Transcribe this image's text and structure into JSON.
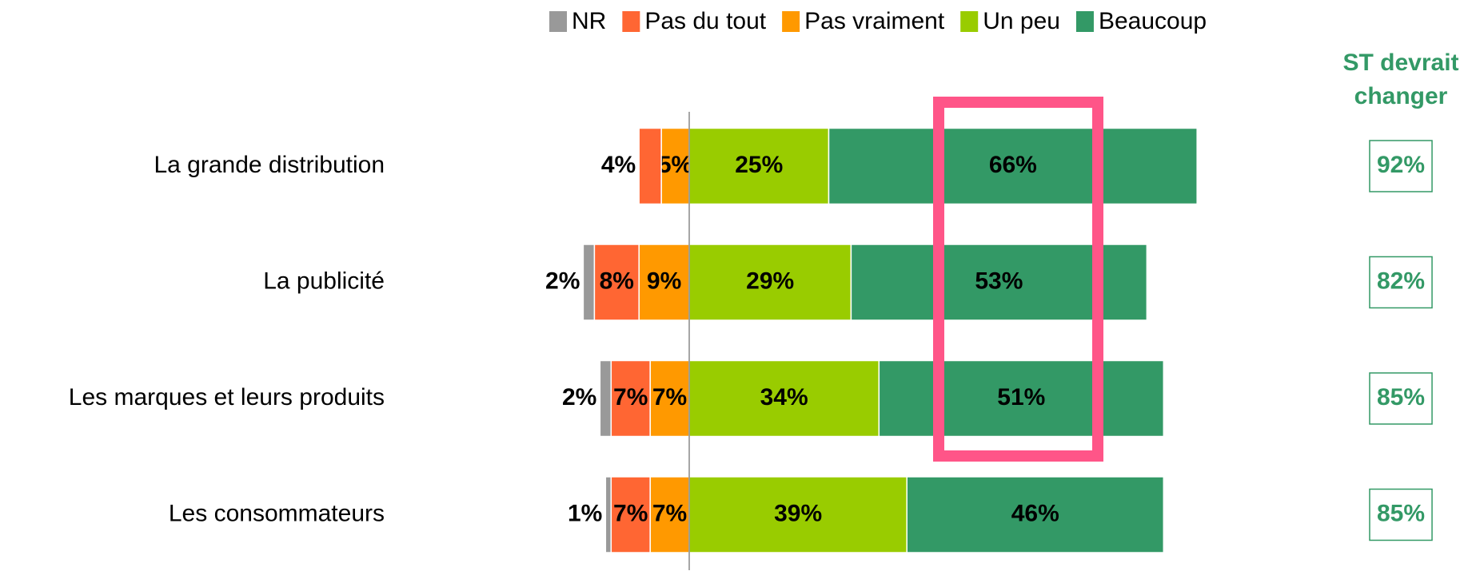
{
  "chart_data": {
    "type": "diverging_bar",
    "categories": [
      "La grande distribution",
      "La publicité",
      "Les marques et leurs produits",
      "Les consommateurs"
    ],
    "series": [
      {
        "name": "NR",
        "color": "#999999",
        "side": "negative",
        "values": [
          null,
          2,
          2,
          1
        ],
        "value_labels": [
          null,
          "2%",
          "2%",
          "1%"
        ]
      },
      {
        "name": "Pas du tout",
        "color": "#ff6633",
        "side": "negative",
        "values": [
          4,
          8,
          7,
          7
        ],
        "value_labels": [
          "4%",
          "8%",
          "7%",
          "7%"
        ]
      },
      {
        "name": "Pas vraiment",
        "color": "#ff9900",
        "side": "negative",
        "values": [
          5,
          9,
          7,
          7
        ],
        "value_labels": [
          "5%",
          "9%",
          "7%",
          "7%"
        ]
      },
      {
        "name": "Un peu",
        "color": "#99cc00",
        "side": "positive",
        "values": [
          25,
          29,
          34,
          39
        ],
        "value_labels": [
          "25%",
          "29%",
          "34%",
          "39%"
        ]
      },
      {
        "name": "Beaucoup",
        "color": "#339966",
        "side": "positive",
        "values": [
          66,
          53,
          51,
          46
        ],
        "value_labels": [
          "66%",
          "53%",
          "51%",
          "46%"
        ]
      }
    ],
    "totals": {
      "name": "ST devrait changer",
      "color": "#339966",
      "values": [
        92,
        82,
        85,
        85
      ],
      "value_labels": [
        "92%",
        "82%",
        "85%",
        "85%"
      ]
    }
  }
}
